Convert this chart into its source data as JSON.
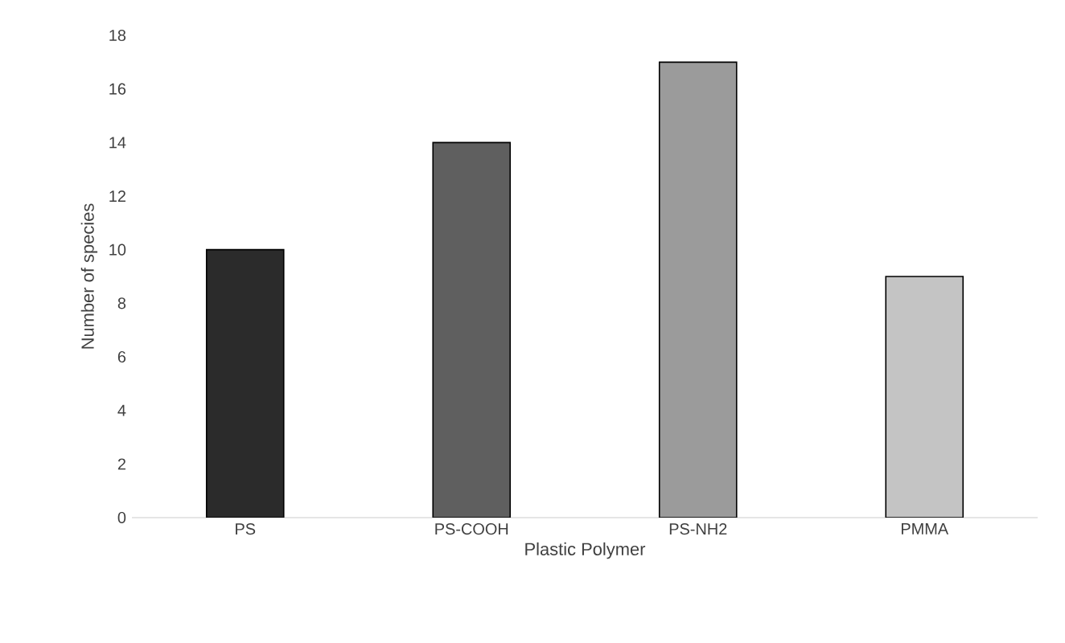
{
  "chart_data": {
    "type": "bar",
    "xlabel": "Plastic Polymer",
    "ylabel": "Number of species",
    "categories": [
      "PS",
      "PS-COOH",
      "PS-NH2",
      "PMMA"
    ],
    "values": [
      10,
      14,
      17,
      9
    ],
    "colors": [
      "#2b2b2b",
      "#5f5f5f",
      "#9b9b9b",
      "#c4c4c4"
    ],
    "ylim": [
      0,
      18
    ],
    "yticks": [
      0,
      2,
      4,
      6,
      8,
      10,
      12,
      14,
      16,
      18
    ]
  }
}
